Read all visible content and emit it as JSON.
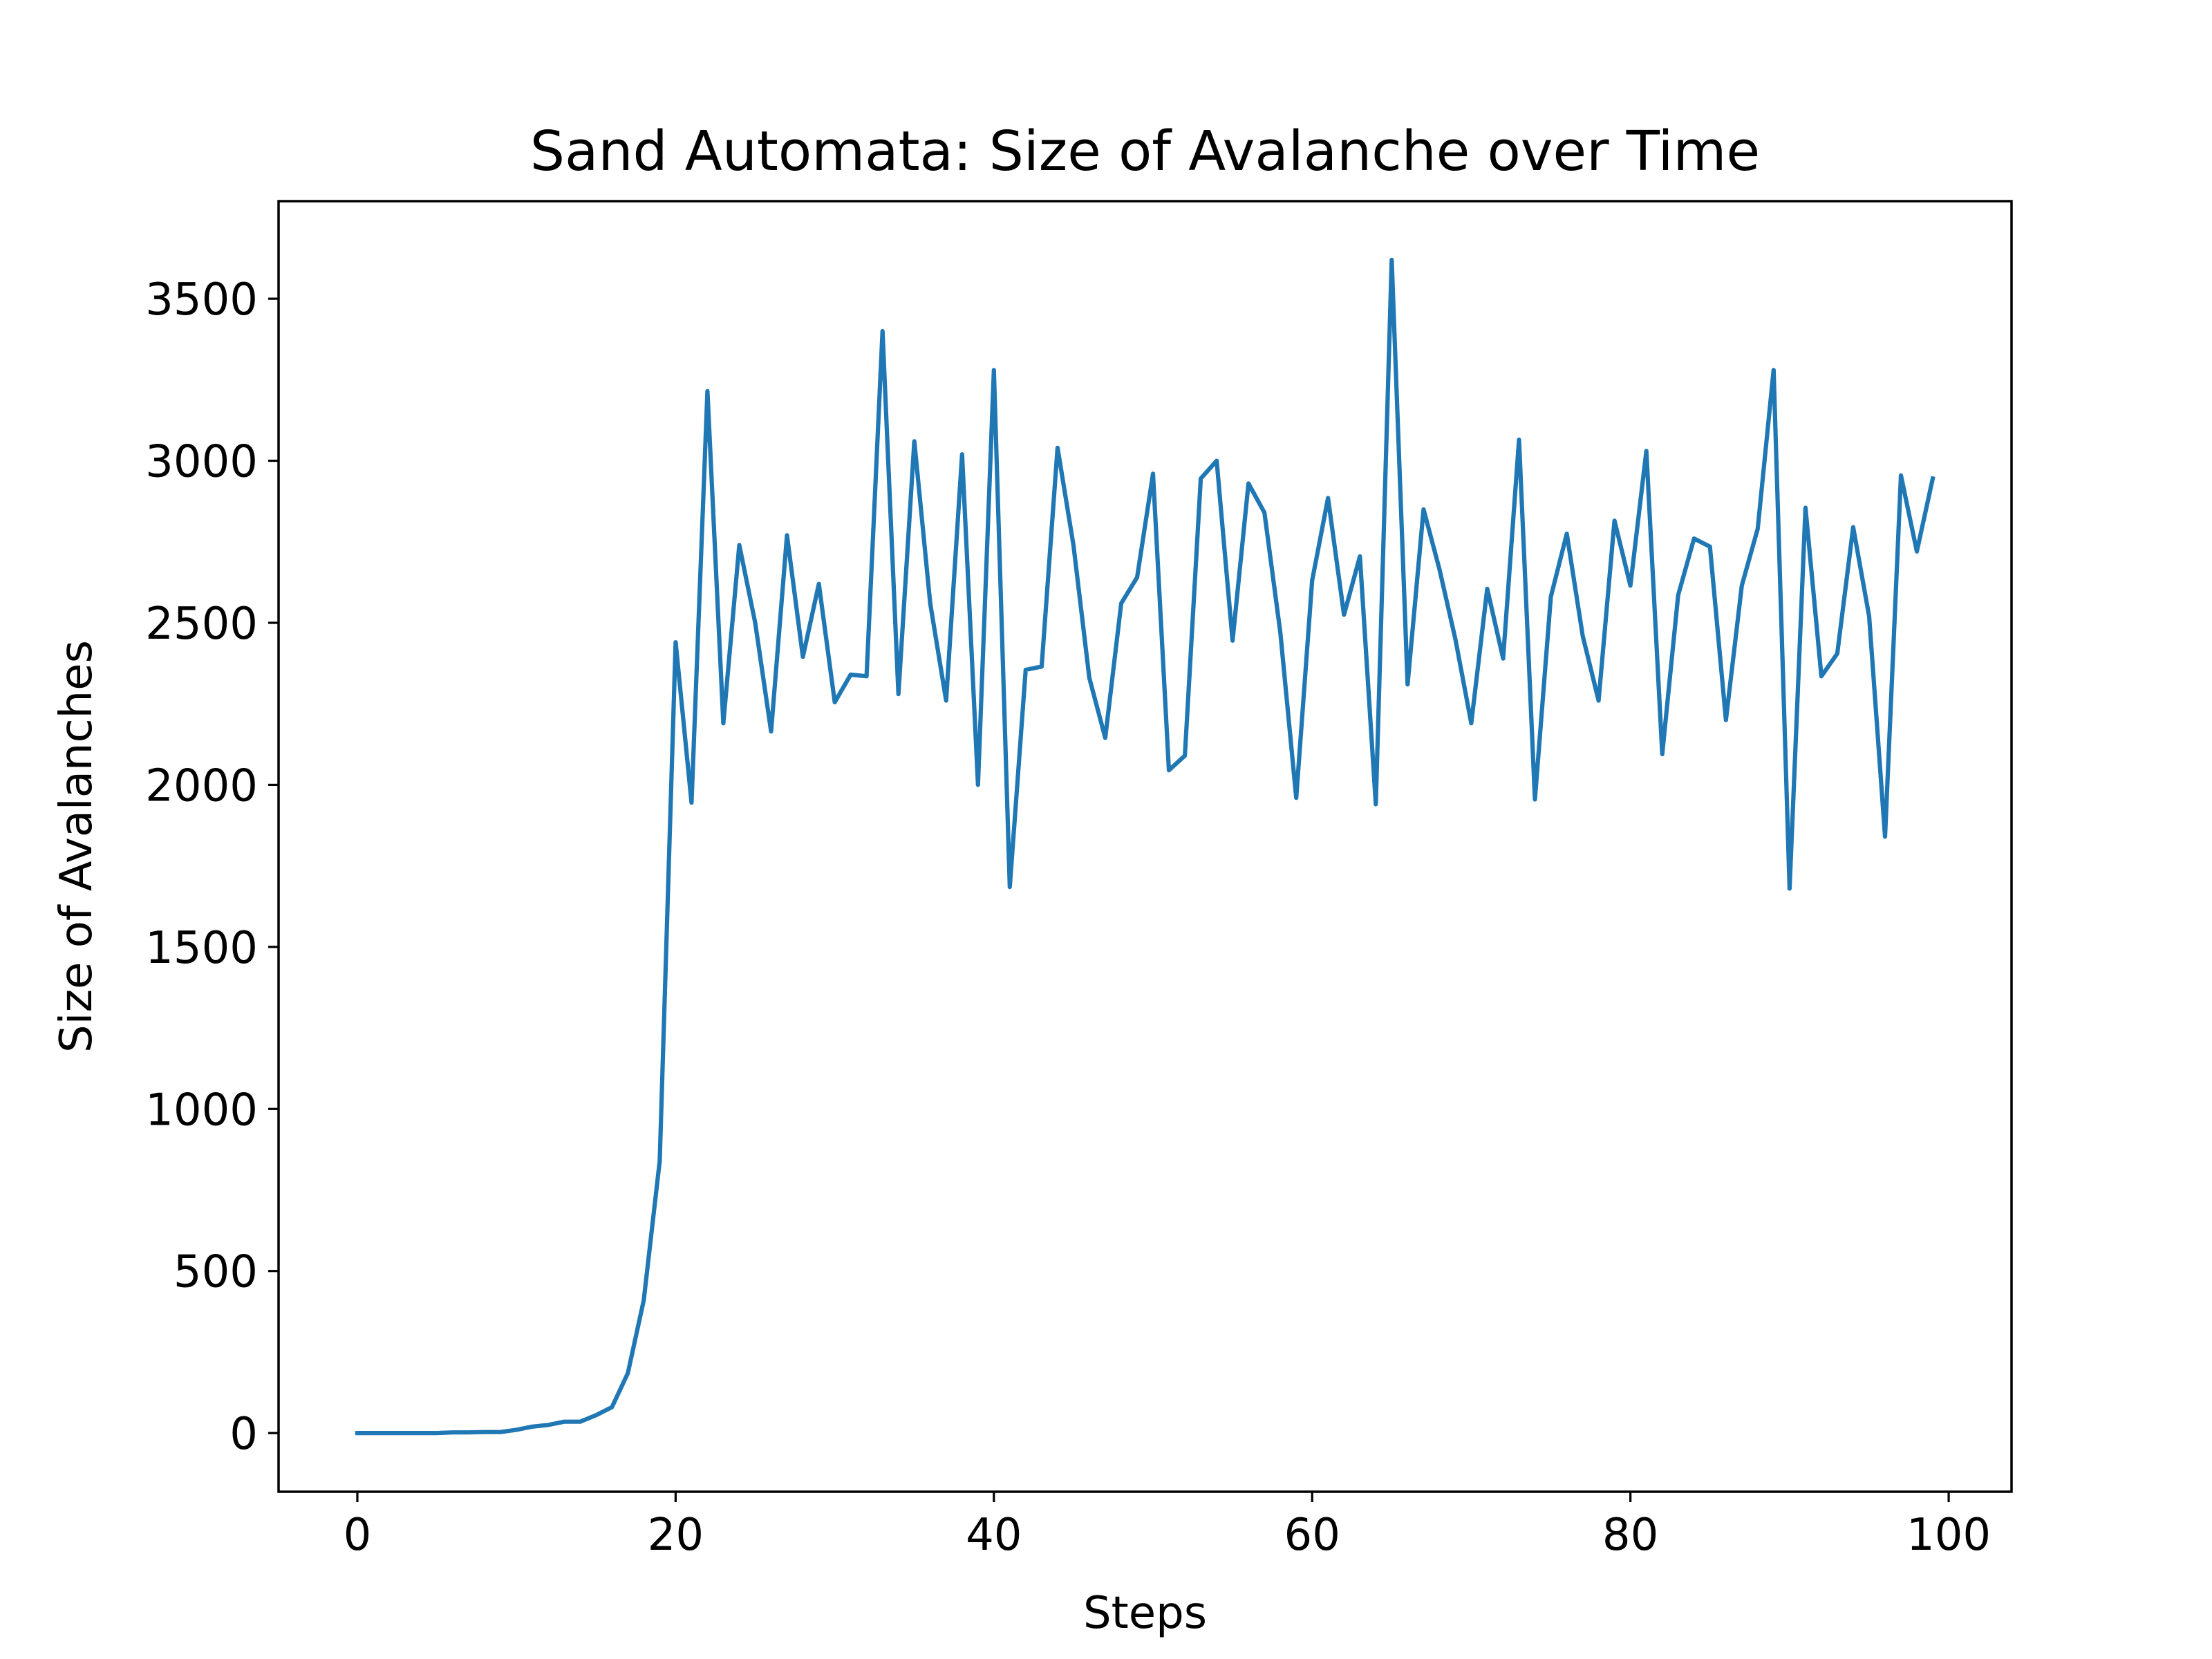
{
  "chart_data": {
    "type": "line",
    "title": "Sand Automata: Size of Avalanche over Time",
    "xlabel": "Steps",
    "ylabel": "Size of Avalanches",
    "xlim": [
      -4.95,
      103.95
    ],
    "ylim": [
      -181,
      3801
    ],
    "xticks": [
      0,
      20,
      40,
      60,
      80,
      100
    ],
    "yticks": [
      0,
      500,
      1000,
      1500,
      2000,
      2500,
      3000,
      3500
    ],
    "grid": false,
    "legend": "none",
    "colors": {
      "line": "#1f77b4",
      "axes": "#000000",
      "background": "#ffffff"
    },
    "series": [
      {
        "x": [
          0,
          1,
          2,
          3,
          4,
          5,
          6,
          7,
          8,
          9,
          10,
          11,
          12,
          13,
          14,
          15,
          16,
          17,
          18,
          19,
          20,
          21,
          22,
          23,
          24,
          25,
          26,
          27,
          28,
          29,
          30,
          31,
          32,
          33,
          34,
          35,
          36,
          37,
          38,
          39,
          40,
          41,
          42,
          43,
          44,
          45,
          46,
          47,
          48,
          49,
          50,
          51,
          52,
          53,
          54,
          55,
          56,
          57,
          58,
          59,
          60,
          61,
          62,
          63,
          64,
          65,
          66,
          67,
          68,
          69,
          70,
          71,
          72,
          73,
          74,
          75,
          76,
          77,
          78,
          79,
          80,
          81,
          82,
          83,
          84,
          85,
          86,
          87,
          88,
          89,
          90,
          91,
          92,
          93,
          94,
          95,
          96,
          97,
          98,
          99
        ],
        "values": [
          0,
          0,
          0,
          0,
          0,
          0,
          2,
          2,
          3,
          3,
          10,
          20,
          25,
          35,
          35,
          55,
          80,
          185,
          410,
          840,
          2440,
          1945,
          3215,
          2190,
          2740,
          2500,
          2165,
          2770,
          2395,
          2620,
          2255,
          2340,
          2335,
          3400,
          2280,
          3060,
          2560,
          2260,
          3020,
          2000,
          3280,
          1685,
          2355,
          2365,
          3040,
          2740,
          2330,
          2145,
          2560,
          2640,
          2960,
          2045,
          2090,
          2945,
          3000,
          2445,
          2930,
          2840,
          2470,
          1960,
          2630,
          2885,
          2525,
          2705,
          1940,
          3620,
          2310,
          2850,
          2665,
          2450,
          2190,
          2605,
          2390,
          3065,
          1955,
          2580,
          2775,
          2460,
          2260,
          2815,
          2615,
          3030,
          2095,
          2585,
          2760,
          2735,
          2200,
          2615,
          2790,
          3280,
          1680,
          2855,
          2335,
          2405,
          2795,
          2520,
          1840,
          2955,
          2720,
          2945
        ]
      }
    ]
  }
}
